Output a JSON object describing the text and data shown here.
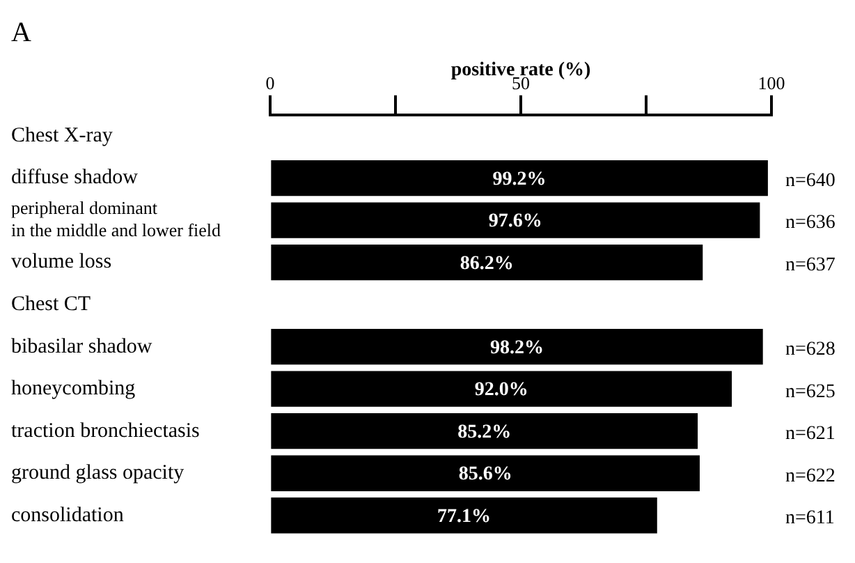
{
  "chart_data": {
    "type": "bar",
    "orientation": "horizontal",
    "title": "A",
    "xlabel": "positive rate (%)",
    "categories": [
      "Chest X-ray",
      "diffuse shadow",
      "peripheral dominant in the middle and lower field",
      "volume loss",
      "Chest CT",
      "bibasilar shadow",
      "honeycombing",
      "traction bronchiectasis",
      "ground glass opacity",
      "consolidation"
    ],
    "values": [
      null,
      99.2,
      97.6,
      86.2,
      null,
      98.2,
      92.0,
      85.2,
      85.6,
      77.1
    ],
    "value_labels": [
      null,
      "99.2%",
      "97.6%",
      "86.2%",
      null,
      "98.2%",
      "92.0%",
      "85.2%",
      "85.6%",
      "77.1%"
    ],
    "color": "#000000",
    "xlim": [
      0,
      100
    ],
    "xticks": [
      0,
      {
        "value": 25,
        "label": null
      },
      50,
      {
        "value": 75,
        "label": null
      },
      100
    ],
    "grid": false,
    "legend": false,
    "annotations": [
      "n=640",
      "n=636",
      "n=637",
      "n=628",
      "n=625",
      "n=621",
      "n=622",
      "n=611"
    ]
  }
}
